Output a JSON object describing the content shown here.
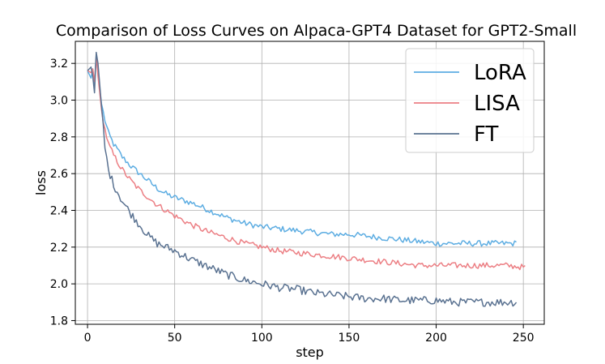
{
  "chart_data": {
    "type": "line",
    "title": "Comparison of Loss Curves on Alpaca-GPT4 Dataset for GPT2-Small",
    "xlabel": "step",
    "ylabel": "loss",
    "xlim": [
      -7,
      262
    ],
    "ylim": [
      1.78,
      3.32
    ],
    "x_ticks": [
      0,
      50,
      100,
      150,
      200,
      250
    ],
    "y_ticks": [
      1.8,
      2.0,
      2.2,
      2.4,
      2.6,
      2.8,
      3.0,
      3.2
    ],
    "x_tick_labels": [
      "0",
      "50",
      "100",
      "150",
      "200",
      "250"
    ],
    "y_tick_labels": [
      "1.8",
      "2.0",
      "2.2",
      "2.4",
      "2.6",
      "2.8",
      "3.0",
      "3.2"
    ],
    "grid": true,
    "legend_position": "top-right",
    "series": [
      {
        "name": "LoRA",
        "color": "#5dade2",
        "end_step": 246,
        "points": [
          [
            0,
            3.16
          ],
          [
            2,
            3.12
          ],
          [
            3,
            3.17
          ],
          [
            4,
            3.08
          ],
          [
            5,
            3.25
          ],
          [
            6,
            3.15
          ],
          [
            8,
            2.98
          ],
          [
            10,
            2.89
          ],
          [
            12,
            2.82
          ],
          [
            15,
            2.76
          ],
          [
            20,
            2.69
          ],
          [
            25,
            2.64
          ],
          [
            30,
            2.6
          ],
          [
            35,
            2.56
          ],
          [
            40,
            2.52
          ],
          [
            45,
            2.49
          ],
          [
            50,
            2.47
          ],
          [
            60,
            2.44
          ],
          [
            70,
            2.4
          ],
          [
            80,
            2.36
          ],
          [
            90,
            2.33
          ],
          [
            100,
            2.31
          ],
          [
            110,
            2.3
          ],
          [
            120,
            2.29
          ],
          [
            130,
            2.28
          ],
          [
            140,
            2.27
          ],
          [
            150,
            2.27
          ],
          [
            160,
            2.26
          ],
          [
            170,
            2.25
          ],
          [
            180,
            2.24
          ],
          [
            190,
            2.23
          ],
          [
            200,
            2.22
          ],
          [
            210,
            2.22
          ],
          [
            220,
            2.22
          ],
          [
            230,
            2.22
          ],
          [
            240,
            2.22
          ],
          [
            246,
            2.22
          ]
        ]
      },
      {
        "name": "LISA",
        "color": "#ec7f84",
        "end_step": 251,
        "points": [
          [
            0,
            3.16
          ],
          [
            2,
            3.15
          ],
          [
            3,
            3.17
          ],
          [
            4,
            3.1
          ],
          [
            5,
            3.24
          ],
          [
            6,
            3.13
          ],
          [
            8,
            2.95
          ],
          [
            10,
            2.84
          ],
          [
            12,
            2.76
          ],
          [
            15,
            2.7
          ],
          [
            20,
            2.62
          ],
          [
            25,
            2.56
          ],
          [
            30,
            2.51
          ],
          [
            35,
            2.47
          ],
          [
            40,
            2.43
          ],
          [
            45,
            2.4
          ],
          [
            50,
            2.37
          ],
          [
            60,
            2.32
          ],
          [
            70,
            2.28
          ],
          [
            80,
            2.25
          ],
          [
            90,
            2.22
          ],
          [
            100,
            2.2
          ],
          [
            110,
            2.18
          ],
          [
            120,
            2.17
          ],
          [
            130,
            2.16
          ],
          [
            140,
            2.15
          ],
          [
            150,
            2.14
          ],
          [
            160,
            2.13
          ],
          [
            170,
            2.12
          ],
          [
            180,
            2.11
          ],
          [
            190,
            2.1
          ],
          [
            200,
            2.1
          ],
          [
            210,
            2.1
          ],
          [
            220,
            2.1
          ],
          [
            230,
            2.1
          ],
          [
            240,
            2.1
          ],
          [
            251,
            2.09
          ]
        ]
      },
      {
        "name": "FT",
        "color": "#5a7291",
        "end_step": 246,
        "points": [
          [
            0,
            3.16
          ],
          [
            2,
            3.18
          ],
          [
            3,
            3.13
          ],
          [
            4,
            3.04
          ],
          [
            5,
            3.26
          ],
          [
            6,
            3.2
          ],
          [
            8,
            2.97
          ],
          [
            10,
            2.74
          ],
          [
            12,
            2.62
          ],
          [
            15,
            2.54
          ],
          [
            20,
            2.45
          ],
          [
            25,
            2.38
          ],
          [
            30,
            2.32
          ],
          [
            35,
            2.26
          ],
          [
            40,
            2.22
          ],
          [
            45,
            2.2
          ],
          [
            50,
            2.18
          ],
          [
            60,
            2.13
          ],
          [
            70,
            2.09
          ],
          [
            80,
            2.05
          ],
          [
            90,
            2.02
          ],
          [
            100,
            2.0
          ],
          [
            110,
            1.98
          ],
          [
            120,
            1.97
          ],
          [
            130,
            1.95
          ],
          [
            140,
            1.94
          ],
          [
            150,
            1.93
          ],
          [
            160,
            1.92
          ],
          [
            170,
            1.92
          ],
          [
            180,
            1.91
          ],
          [
            190,
            1.91
          ],
          [
            200,
            1.91
          ],
          [
            210,
            1.9
          ],
          [
            220,
            1.9
          ],
          [
            230,
            1.9
          ],
          [
            240,
            1.9
          ],
          [
            246,
            1.9
          ]
        ]
      }
    ]
  }
}
